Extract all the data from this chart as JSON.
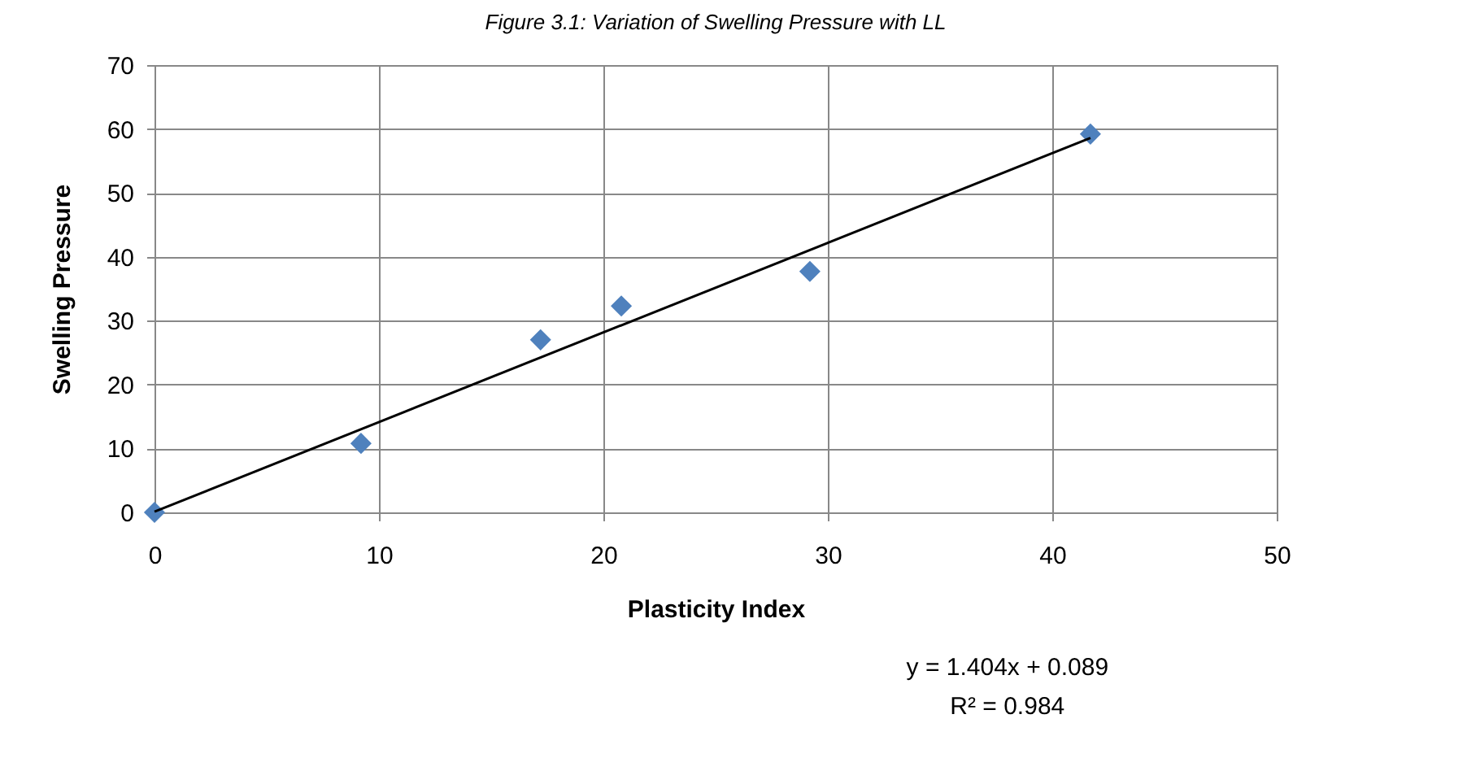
{
  "chart_data": {
    "type": "scatter",
    "title": "Figure 3.1: Variation of Swelling Pressure with LL",
    "xlabel": "Plasticity Index",
    "ylabel": "Swelling Pressure",
    "series": [
      {
        "color": "#4f81bd",
        "marker": "diamond",
        "x": [
          0,
          9.2,
          17.2,
          20.8,
          29.2,
          41.7
        ],
        "values": [
          0,
          10.8,
          27,
          32.3,
          37.7,
          59.2
        ]
      },
      {
        "type": "line",
        "color": "#000000",
        "marker": "none",
        "line_style": "solid",
        "x": [
          0,
          41.7
        ],
        "values": [
          0.1,
          58.6
        ]
      }
    ],
    "xlim": [
      0,
      50
    ],
    "xticks": [
      0,
      10,
      20,
      30,
      40,
      50
    ],
    "ylim": [
      0,
      70
    ],
    "yticks": [
      0,
      10,
      20,
      30,
      40,
      50,
      60,
      70
    ],
    "grid": true,
    "annotations": [
      "y = 1.404x + 0.089",
      "R² = 0.984"
    ]
  }
}
